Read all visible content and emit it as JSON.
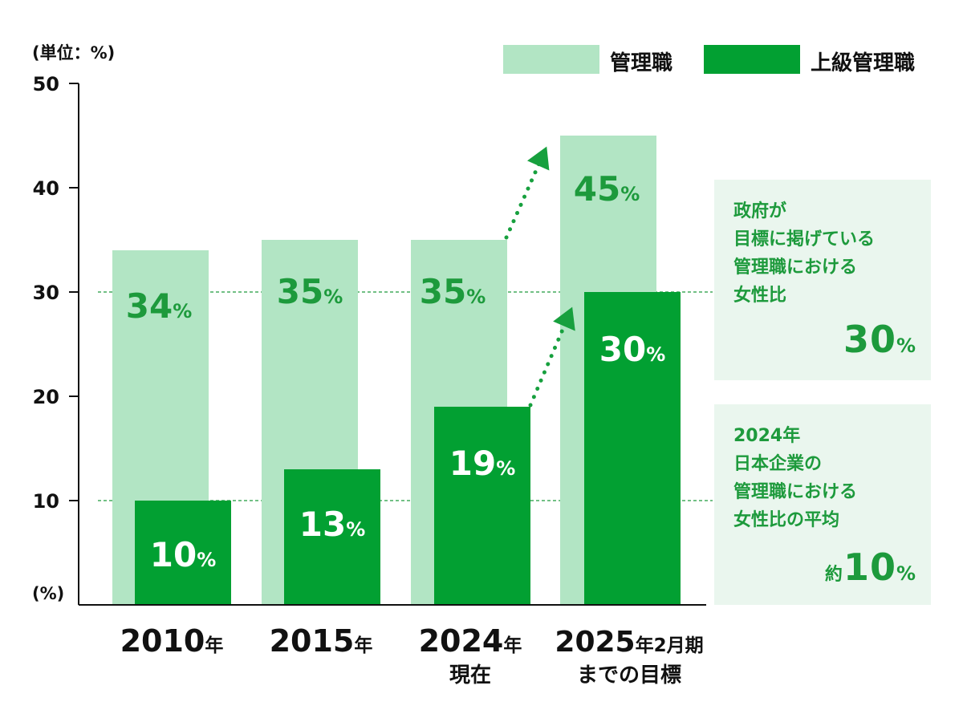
{
  "unit_label": "(単位：%)",
  "y_unit": "(%)",
  "colors": {
    "manager": "#b2e5c4",
    "senior": "#02a032",
    "text_green": "#1d9a3c",
    "callout_bg": "#eaf6ee"
  },
  "legend": [
    {
      "name": "管理職",
      "color": "#b2e5c4"
    },
    {
      "name": "上級管理職",
      "color": "#02a032"
    }
  ],
  "callouts": {
    "government": {
      "text": "政府が\n目標に掲げている\n管理職における\n女性比",
      "value": "30",
      "pct": "%"
    },
    "average": {
      "text": "2024年\n日本企業の\n管理職における\n女性比の平均",
      "prefix": "約",
      "value": "10",
      "pct": "%"
    }
  },
  "chart_data": {
    "type": "bar",
    "categories": [
      {
        "main": "2010",
        "suffix": "年",
        "sub": ""
      },
      {
        "main": "2015",
        "suffix": "年",
        "sub": ""
      },
      {
        "main": "2024",
        "suffix": "年",
        "sub": "現在"
      },
      {
        "main": "2025",
        "suffix": "年2月期",
        "sub": "までの目標"
      }
    ],
    "series": [
      {
        "name": "管理職",
        "values": [
          34,
          35,
          35,
          45
        ],
        "labels": [
          "34",
          "35",
          "35",
          "45"
        ]
      },
      {
        "name": "上級管理職",
        "values": [
          10,
          13,
          19,
          30
        ],
        "labels": [
          "10",
          "13",
          "19",
          "30"
        ]
      }
    ],
    "yticks": [
      10,
      20,
      30,
      40,
      50
    ],
    "ylim": [
      0,
      50
    ],
    "reference_lines": [
      30,
      10
    ],
    "value_suffix": "%"
  }
}
